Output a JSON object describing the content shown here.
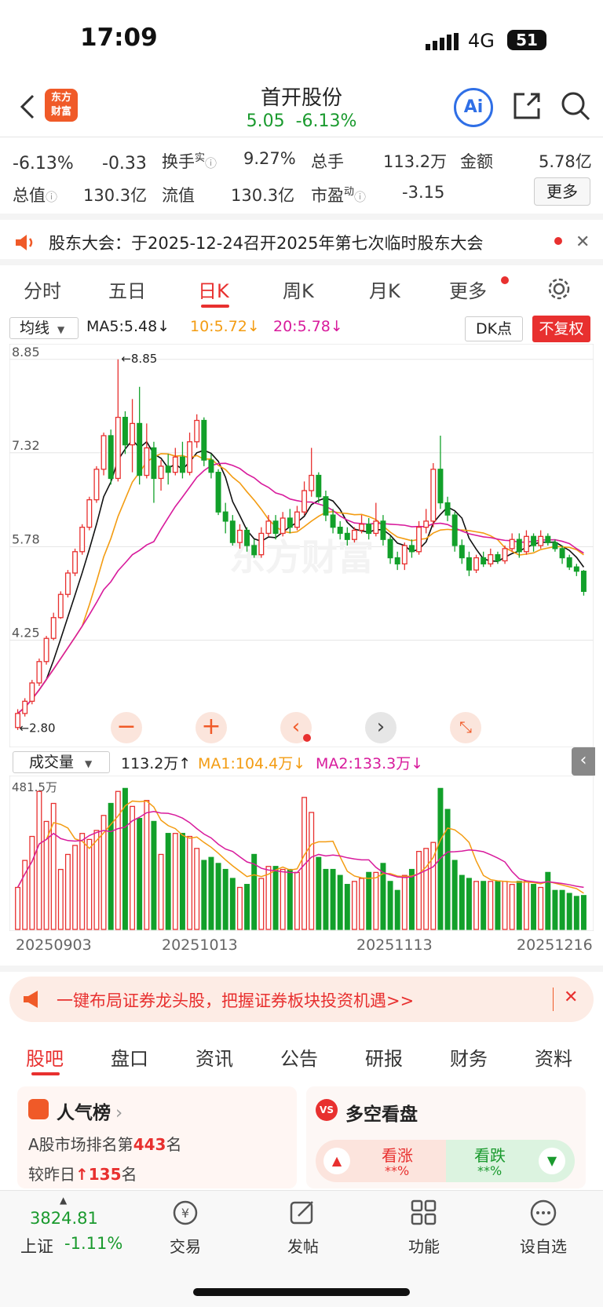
{
  "status": {
    "time": "17:09",
    "network": "4G",
    "battery": "51"
  },
  "header": {
    "logo_line1": "东方",
    "logo_line2": "财富",
    "title": "首开股份",
    "price": "5.05",
    "change_pct": "-6.13%",
    "ai_label": "Ai"
  },
  "quote": {
    "change_pct": "-6.13%",
    "change_amt": "-0.33",
    "turnover_label": "换手",
    "turnover_sup": "实",
    "turnover": "9.27%",
    "volume_label": "总手",
    "volume": "113.2万",
    "amount_label": "金额",
    "amount": "5.78亿",
    "total_cap_label": "总值",
    "total_cap": "130.3亿",
    "float_cap_label": "流值",
    "float_cap": "130.3亿",
    "pe_label": "市盈",
    "pe_sup": "动",
    "pe": "-3.15",
    "more": "更多"
  },
  "notice": {
    "text": "股东大会：于2025-12-24召开2025年第七次临时股东大会"
  },
  "chart_tabs": [
    "分时",
    "五日",
    "日K",
    "周K",
    "月K",
    "更多"
  ],
  "chart_tab_active": 2,
  "ma_bar": {
    "selector": "均线",
    "ma5": "MA5:5.48",
    "ma10": "10:5.72",
    "ma20": "20:5.78",
    "dk": "DK点",
    "fq": "不复权"
  },
  "chart_data": {
    "type": "candlestick",
    "price_ticks": [
      "8.85",
      "7.32",
      "5.78",
      "4.25"
    ],
    "high_label": "8.85",
    "low_label": "2.80",
    "watermark": "东方财富",
    "candles": [
      [
        2.82,
        3.05,
        2.78,
        3.12
      ],
      [
        3.05,
        3.25,
        3.0,
        3.3
      ],
      [
        3.25,
        3.55,
        3.2,
        3.6
      ],
      [
        3.55,
        3.9,
        3.5,
        3.95
      ],
      [
        3.9,
        4.28,
        3.85,
        4.32
      ],
      [
        4.28,
        4.62,
        4.25,
        4.7
      ],
      [
        4.62,
        5.0,
        4.6,
        5.05
      ],
      [
        5.0,
        5.35,
        4.95,
        5.4
      ],
      [
        5.35,
        5.7,
        5.3,
        5.75
      ],
      [
        5.7,
        6.1,
        5.65,
        6.15
      ],
      [
        6.1,
        6.55,
        6.05,
        6.6
      ],
      [
        6.55,
        7.05,
        6.5,
        7.1
      ],
      [
        7.05,
        7.6,
        6.95,
        7.65
      ],
      [
        7.6,
        6.9,
        6.8,
        7.7
      ],
      [
        6.9,
        7.9,
        6.85,
        8.85
      ],
      [
        7.9,
        7.45,
        7.3,
        8.0
      ],
      [
        7.45,
        7.8,
        7.0,
        8.2
      ],
      [
        7.8,
        6.95,
        6.8,
        8.4
      ],
      [
        6.95,
        7.4,
        6.9,
        7.8
      ],
      [
        7.4,
        6.9,
        6.5,
        7.5
      ],
      [
        6.9,
        7.1,
        6.7,
        7.2
      ],
      [
        7.1,
        7.0,
        6.8,
        7.3
      ],
      [
        7.0,
        7.25,
        6.95,
        7.4
      ],
      [
        7.25,
        7.0,
        6.9,
        7.5
      ],
      [
        7.0,
        7.5,
        6.95,
        7.65
      ],
      [
        7.5,
        7.85,
        7.4,
        7.95
      ],
      [
        7.85,
        7.2,
        7.1,
        7.9
      ],
      [
        7.2,
        7.0,
        6.9,
        7.3
      ],
      [
        7.0,
        6.35,
        6.3,
        7.05
      ],
      [
        6.35,
        6.2,
        6.0,
        6.5
      ],
      [
        6.2,
        5.85,
        5.8,
        6.3
      ],
      [
        5.85,
        6.05,
        5.75,
        6.15
      ],
      [
        6.05,
        5.8,
        5.7,
        6.1
      ],
      [
        5.8,
        5.65,
        5.6,
        5.9
      ],
      [
        5.65,
        6.0,
        5.6,
        6.1
      ],
      [
        6.0,
        6.2,
        5.95,
        6.3
      ],
      [
        6.2,
        6.0,
        5.9,
        6.3
      ],
      [
        6.0,
        6.25,
        5.95,
        6.35
      ],
      [
        6.25,
        6.1,
        6.0,
        6.4
      ],
      [
        6.1,
        6.35,
        6.05,
        6.45
      ],
      [
        6.35,
        6.7,
        6.3,
        6.85
      ],
      [
        6.7,
        6.95,
        6.6,
        7.4
      ],
      [
        6.95,
        6.6,
        6.5,
        7.0
      ],
      [
        6.6,
        6.3,
        6.2,
        6.7
      ],
      [
        6.3,
        6.1,
        6.0,
        6.4
      ],
      [
        6.1,
        6.0,
        5.9,
        6.2
      ],
      [
        6.0,
        5.9,
        5.8,
        6.1
      ],
      [
        5.9,
        6.05,
        5.85,
        6.1
      ],
      [
        6.05,
        6.15,
        6.0,
        6.3
      ],
      [
        6.15,
        6.0,
        5.9,
        6.25
      ],
      [
        6.0,
        6.2,
        5.95,
        6.5
      ],
      [
        6.2,
        5.9,
        5.8,
        6.3
      ],
      [
        5.9,
        5.6,
        5.5,
        5.95
      ],
      [
        5.6,
        5.5,
        5.4,
        5.7
      ],
      [
        5.5,
        5.8,
        5.4,
        5.85
      ],
      [
        5.8,
        5.7,
        5.6,
        5.9
      ],
      [
        5.7,
        6.1,
        5.65,
        6.2
      ],
      [
        6.1,
        6.2,
        6.0,
        6.4
      ],
      [
        6.2,
        7.05,
        6.1,
        7.15
      ],
      [
        7.05,
        6.5,
        6.4,
        7.6
      ],
      [
        6.5,
        6.3,
        6.2,
        6.6
      ],
      [
        6.3,
        5.8,
        5.7,
        6.35
      ],
      [
        5.8,
        5.6,
        5.5,
        5.9
      ],
      [
        5.6,
        5.4,
        5.3,
        5.7
      ],
      [
        5.4,
        5.6,
        5.35,
        5.65
      ],
      [
        5.6,
        5.5,
        5.45,
        5.7
      ],
      [
        5.5,
        5.65,
        5.45,
        5.75
      ],
      [
        5.65,
        5.55,
        5.5,
        5.7
      ],
      [
        5.55,
        5.75,
        5.5,
        5.8
      ],
      [
        5.75,
        5.9,
        5.7,
        6.0
      ],
      [
        5.9,
        5.7,
        5.6,
        6.0
      ],
      [
        5.7,
        5.95,
        5.65,
        6.05
      ],
      [
        5.95,
        5.8,
        5.7,
        6.0
      ],
      [
        5.8,
        5.95,
        5.75,
        6.05
      ],
      [
        5.95,
        5.85,
        5.8,
        6.0
      ],
      [
        5.85,
        5.75,
        5.7,
        5.9
      ],
      [
        5.75,
        5.6,
        5.5,
        5.8
      ],
      [
        5.6,
        5.45,
        5.4,
        5.65
      ],
      [
        5.45,
        5.38,
        5.3,
        5.5
      ],
      [
        5.38,
        5.05,
        4.98,
        5.4
      ]
    ],
    "volume_label": "成交量",
    "volume_value": "113.2万",
    "vol_ma1": "MA1:104.4万",
    "vol_ma2": "MA2:133.3万",
    "volume_max_label": "481.5万",
    "volumes": [
      140,
      230,
      310,
      460,
      360,
      420,
      200,
      250,
      280,
      320,
      300,
      330,
      380,
      420,
      460,
      470,
      410,
      370,
      430,
      360,
      250,
      320,
      320,
      320,
      310,
      270,
      230,
      240,
      220,
      200,
      170,
      140,
      150,
      250,
      170,
      210,
      210,
      200,
      200,
      190,
      440,
      390,
      240,
      200,
      200,
      180,
      150,
      160,
      170,
      190,
      190,
      220,
      160,
      130,
      180,
      200,
      260,
      270,
      290,
      470,
      400,
      230,
      180,
      170,
      160,
      160,
      160,
      160,
      160,
      150,
      160,
      160,
      150,
      140,
      190,
      130,
      130,
      120,
      110,
      113
    ],
    "dates": [
      "20250903",
      "20251013",
      "20251113",
      "20251216"
    ]
  },
  "promo": {
    "text": "一键布局证券龙头股，把握证券板块投资机遇>>"
  },
  "bottom_tabs": [
    "股吧",
    "盘口",
    "资讯",
    "公告",
    "研报",
    "财务",
    "资料"
  ],
  "popularity": {
    "title": "人气榜",
    "rank_prefix": "A股市场排名第",
    "rank": "443",
    "rank_suffix": "名",
    "change_prefix": "较昨日",
    "change": "135",
    "change_suffix": "名"
  },
  "sentiment": {
    "title": "多空看盘",
    "up": "看涨",
    "down": "看跌",
    "up_pct": "**%",
    "down_pct": "**%"
  },
  "bottom_nav": {
    "index_value": "3824.81",
    "index_name": "上证",
    "index_change": "-1.11%",
    "trade": "交易",
    "post": "发帖",
    "function": "功能",
    "watchlist": "设自选"
  }
}
